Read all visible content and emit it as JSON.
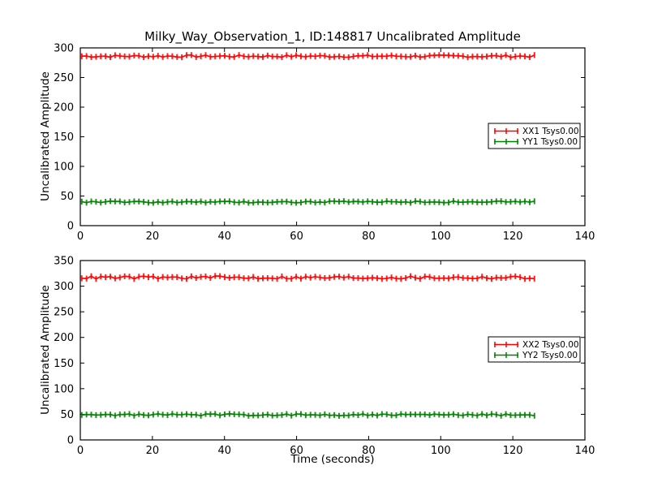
{
  "figure": {
    "title": "Milky_Way_Observation_1, ID:148817 Uncalibrated Amplitude",
    "background": "#ffffff",
    "frame_color": "#000000"
  },
  "chart_data": [
    {
      "type": "line",
      "subplot": "top",
      "title": "",
      "xlabel": "",
      "ylabel": "Uncalibrated Amplitude",
      "xlim": [
        0,
        140
      ],
      "ylim": [
        0,
        300
      ],
      "xticks": [
        0,
        20,
        40,
        60,
        80,
        100,
        120,
        140
      ],
      "yticks": [
        0,
        50,
        100,
        150,
        200,
        250,
        300
      ],
      "grid": false,
      "legend_position": "center-right",
      "legend": [
        "XX1 Tsys0.00",
        "YY1 Tsys0.00"
      ],
      "series": [
        {
          "name": "XX1 Tsys0.00",
          "color": "#ff0000",
          "marker": "errorbar-caps",
          "x_start": 0.4,
          "x_end": 126,
          "n_points": 96,
          "y_mean": 286,
          "y_jitter": 2,
          "points_sample": [
            [
              0.4,
              287
            ],
            [
              13,
              286
            ],
            [
              26,
              287
            ],
            [
              39,
              285
            ],
            [
              52,
              286
            ],
            [
              64,
              284
            ],
            [
              77,
              287
            ],
            [
              90,
              286
            ],
            [
              103,
              287
            ],
            [
              115,
              286
            ],
            [
              126,
              285
            ]
          ]
        },
        {
          "name": "YY1 Tsys0.00",
          "color": "#008000",
          "marker": "errorbar-caps",
          "x_start": 0.4,
          "x_end": 126,
          "n_points": 96,
          "y_mean": 40,
          "y_jitter": 1.5,
          "points_sample": [
            [
              0.4,
              41
            ],
            [
              13,
              40
            ],
            [
              26,
              40
            ],
            [
              39,
              41
            ],
            [
              52,
              40
            ],
            [
              64,
              41
            ],
            [
              77,
              40
            ],
            [
              90,
              40
            ],
            [
              103,
              39
            ],
            [
              115,
              40
            ],
            [
              126,
              38
            ]
          ]
        }
      ]
    },
    {
      "type": "line",
      "subplot": "bottom",
      "title": "",
      "xlabel": "Time (seconds)",
      "ylabel": "Uncalibrated Amplitude",
      "xlim": [
        0,
        140
      ],
      "ylim": [
        0,
        350
      ],
      "xticks": [
        0,
        20,
        40,
        60,
        80,
        100,
        120,
        140
      ],
      "yticks": [
        0,
        50,
        100,
        150,
        200,
        250,
        300,
        350
      ],
      "grid": false,
      "legend_position": "center-right",
      "legend": [
        "XX2 Tsys0.00",
        "YY2 Tsys0.00"
      ],
      "series": [
        {
          "name": "XX2 Tsys0.00",
          "color": "#ff0000",
          "marker": "errorbar-caps",
          "x_start": 0.4,
          "x_end": 126,
          "n_points": 96,
          "y_mean": 317,
          "y_jitter": 3,
          "points_sample": [
            [
              0.4,
              319
            ],
            [
              13,
              317
            ],
            [
              26,
              318
            ],
            [
              39,
              316
            ],
            [
              52,
              317
            ],
            [
              64,
              318
            ],
            [
              77,
              316
            ],
            [
              90,
              317
            ],
            [
              103,
              316
            ],
            [
              115,
              315
            ],
            [
              126,
              314
            ]
          ]
        },
        {
          "name": "YY2 Tsys0.00",
          "color": "#008000",
          "marker": "errorbar-caps",
          "x_start": 0.4,
          "x_end": 126,
          "n_points": 96,
          "y_mean": 49,
          "y_jitter": 2,
          "points_sample": [
            [
              0.4,
              48
            ],
            [
              13,
              49
            ],
            [
              26,
              49
            ],
            [
              39,
              48
            ],
            [
              52,
              50
            ],
            [
              64,
              49
            ],
            [
              77,
              48
            ],
            [
              90,
              48
            ],
            [
              103,
              49
            ],
            [
              115,
              48
            ],
            [
              126,
              46
            ]
          ]
        }
      ]
    }
  ]
}
